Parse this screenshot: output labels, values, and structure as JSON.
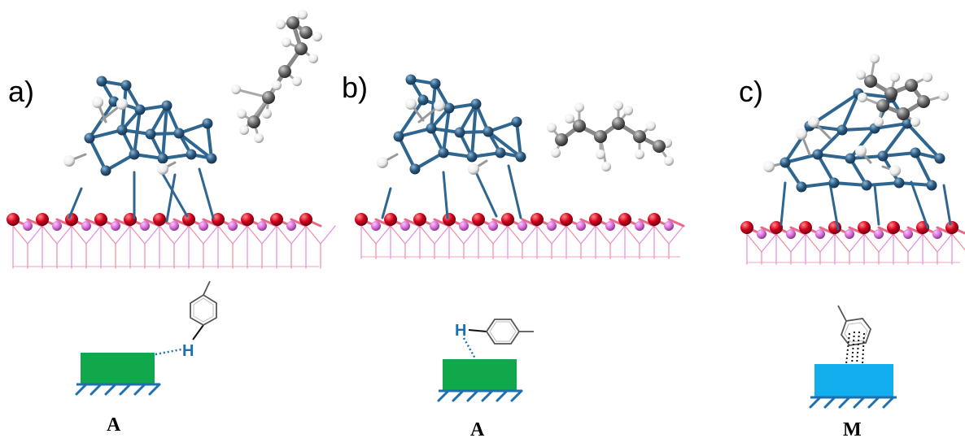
{
  "colors": {
    "cluster_atom": "#2b5a80",
    "cluster_bond": "#2f6690",
    "oxygen": "#d1001c",
    "support_metal": "#d66ad6",
    "support_bond": "#e86a86",
    "carbon": "#6a6a6a",
    "hydrogen_atom": "#f2f2f2",
    "adsorption_site_a": "#10a84a",
    "adsorption_site_m": "#12aeee",
    "hatch": "#1d6fae",
    "hydrogen_text": "#1d6fae"
  },
  "panels": [
    {
      "label": "a)",
      "mechanism": "A",
      "hydrogen": "H",
      "icon": "cluster-with-distant-alkane"
    },
    {
      "label": "b)",
      "mechanism": "A",
      "hydrogen": "H",
      "icon": "cluster-with-nearby-alkane"
    },
    {
      "label": "c)",
      "mechanism": "M",
      "hydrogen": "",
      "icon": "cluster-with-adsorbed-ring"
    }
  ]
}
